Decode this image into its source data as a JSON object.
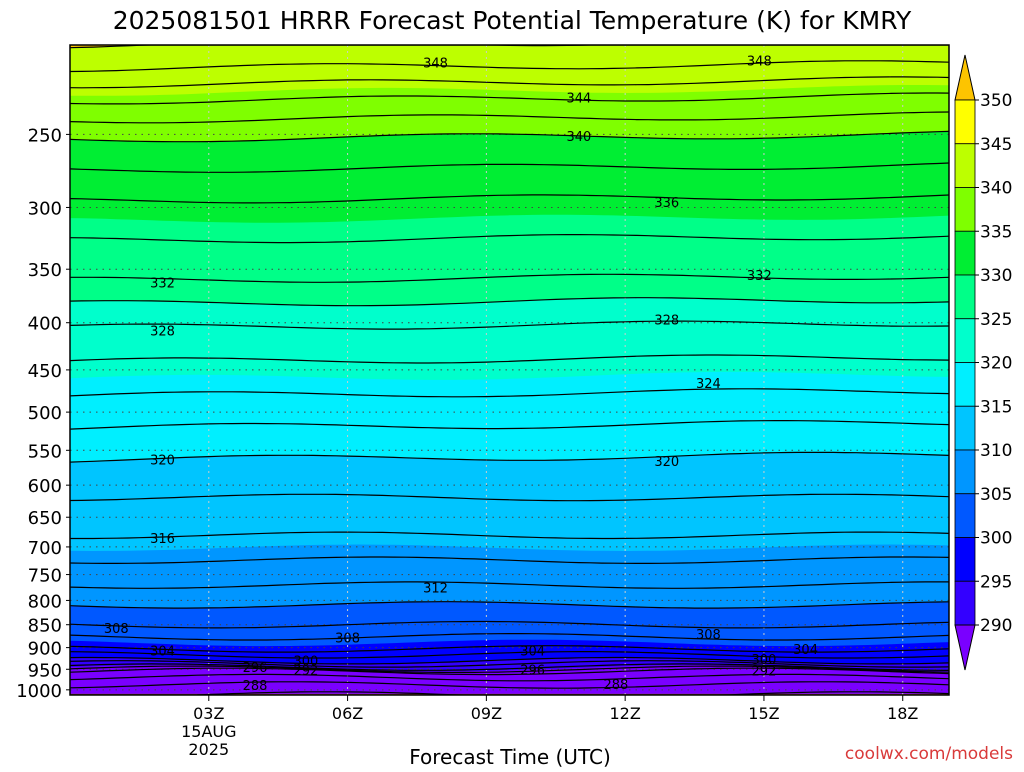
{
  "chart_data": {
    "type": "heatmap",
    "title": "2025081501 HRRR Forecast Potential Temperature (K) for KMRY",
    "xlabel": "Forecast Time (UTC)",
    "ylabel": "",
    "watermark": "coolwx.com/models",
    "x_axis": {
      "unit": "hours from 00Z 15AUG2025",
      "range": [
        0,
        19
      ],
      "ticks": [
        {
          "hour": 3,
          "label": "03Z",
          "sublabels": [
            "15AUG",
            "2025"
          ]
        },
        {
          "hour": 6,
          "label": "06Z",
          "sublabels": []
        },
        {
          "hour": 9,
          "label": "09Z",
          "sublabels": []
        },
        {
          "hour": 12,
          "label": "12Z",
          "sublabels": []
        },
        {
          "hour": 15,
          "label": "15Z",
          "sublabels": []
        },
        {
          "hour": 18,
          "label": "18Z",
          "sublabels": []
        }
      ]
    },
    "y_axis": {
      "unit": "hPa",
      "scale": "log",
      "inverted": true,
      "range": [
        1013,
        200
      ],
      "ticks": [
        250,
        300,
        350,
        400,
        450,
        500,
        550,
        600,
        650,
        700,
        750,
        800,
        850,
        900,
        950,
        1000
      ]
    },
    "grid": true,
    "colorbar": {
      "levels": [
        350,
        345,
        340,
        335,
        330,
        325,
        320,
        315,
        310,
        305,
        300,
        295,
        290
      ],
      "colors": [
        "#fdc400",
        "#ffff00",
        "#bdff00",
        "#7fff00",
        "#00ee33",
        "#00ff88",
        "#00ffcc",
        "#00efff",
        "#00c5ff",
        "#0096ff",
        "#0058ff",
        "#0000ff",
        "#3300ff",
        "#7a00ff"
      ],
      "fill_order_note": "colors listed from above-350 down to below-290"
    },
    "ground_color": "#a0522d",
    "contour_interval_K": 2,
    "contour_labels": [
      {
        "value": "348",
        "hour": 7.9,
        "p": 209
      },
      {
        "value": "348",
        "hour": 14.9,
        "p": 208
      },
      {
        "value": "344",
        "hour": 11.0,
        "p": 228
      },
      {
        "value": "340",
        "hour": 11.0,
        "p": 251
      },
      {
        "value": "336",
        "hour": 12.9,
        "p": 296
      },
      {
        "value": "332",
        "hour": 2.0,
        "p": 362
      },
      {
        "value": "332",
        "hour": 14.9,
        "p": 355
      },
      {
        "value": "328",
        "hour": 2.0,
        "p": 408
      },
      {
        "value": "328",
        "hour": 12.9,
        "p": 397
      },
      {
        "value": "324",
        "hour": 13.8,
        "p": 465
      },
      {
        "value": "320",
        "hour": 2.0,
        "p": 563
      },
      {
        "value": "320",
        "hour": 12.9,
        "p": 565
      },
      {
        "value": "316",
        "hour": 2.0,
        "p": 685
      },
      {
        "value": "312",
        "hour": 7.9,
        "p": 775
      },
      {
        "value": "308",
        "hour": 1.0,
        "p": 857
      },
      {
        "value": "308",
        "hour": 6.0,
        "p": 878
      },
      {
        "value": "308",
        "hour": 13.8,
        "p": 870
      },
      {
        "value": "304",
        "hour": 2.0,
        "p": 907
      },
      {
        "value": "304",
        "hour": 10.0,
        "p": 906
      },
      {
        "value": "304",
        "hour": 15.9,
        "p": 903
      },
      {
        "value": "300",
        "hour": 5.1,
        "p": 930
      },
      {
        "value": "300",
        "hour": 15.0,
        "p": 926
      },
      {
        "value": "296",
        "hour": 4.0,
        "p": 945
      },
      {
        "value": "296",
        "hour": 10.0,
        "p": 951
      },
      {
        "value": "292",
        "hour": 5.1,
        "p": 952
      },
      {
        "value": "292",
        "hour": 15.0,
        "p": 953
      },
      {
        "value": "288",
        "hour": 4.0,
        "p": 988
      },
      {
        "value": "288",
        "hour": 11.8,
        "p": 986
      }
    ],
    "isentrope_profile_00Z": [
      {
        "theta": 350,
        "p": 200
      },
      {
        "theta": 348,
        "p": 212
      },
      {
        "theta": 344,
        "p": 230
      },
      {
        "theta": 340,
        "p": 253
      },
      {
        "theta": 336,
        "p": 295
      },
      {
        "theta": 332,
        "p": 360
      },
      {
        "theta": 328,
        "p": 405
      },
      {
        "theta": 324,
        "p": 480
      },
      {
        "theta": 320,
        "p": 563
      },
      {
        "theta": 316,
        "p": 680
      },
      {
        "theta": 312,
        "p": 770
      },
      {
        "theta": 308,
        "p": 850
      },
      {
        "theta": 304,
        "p": 903
      },
      {
        "theta": 300,
        "p": 930
      },
      {
        "theta": 296,
        "p": 945
      },
      {
        "theta": 292,
        "p": 955
      },
      {
        "theta": 290,
        "p": 970
      },
      {
        "theta": 288,
        "p": 988
      },
      {
        "theta": 286,
        "p": 1013
      }
    ]
  }
}
